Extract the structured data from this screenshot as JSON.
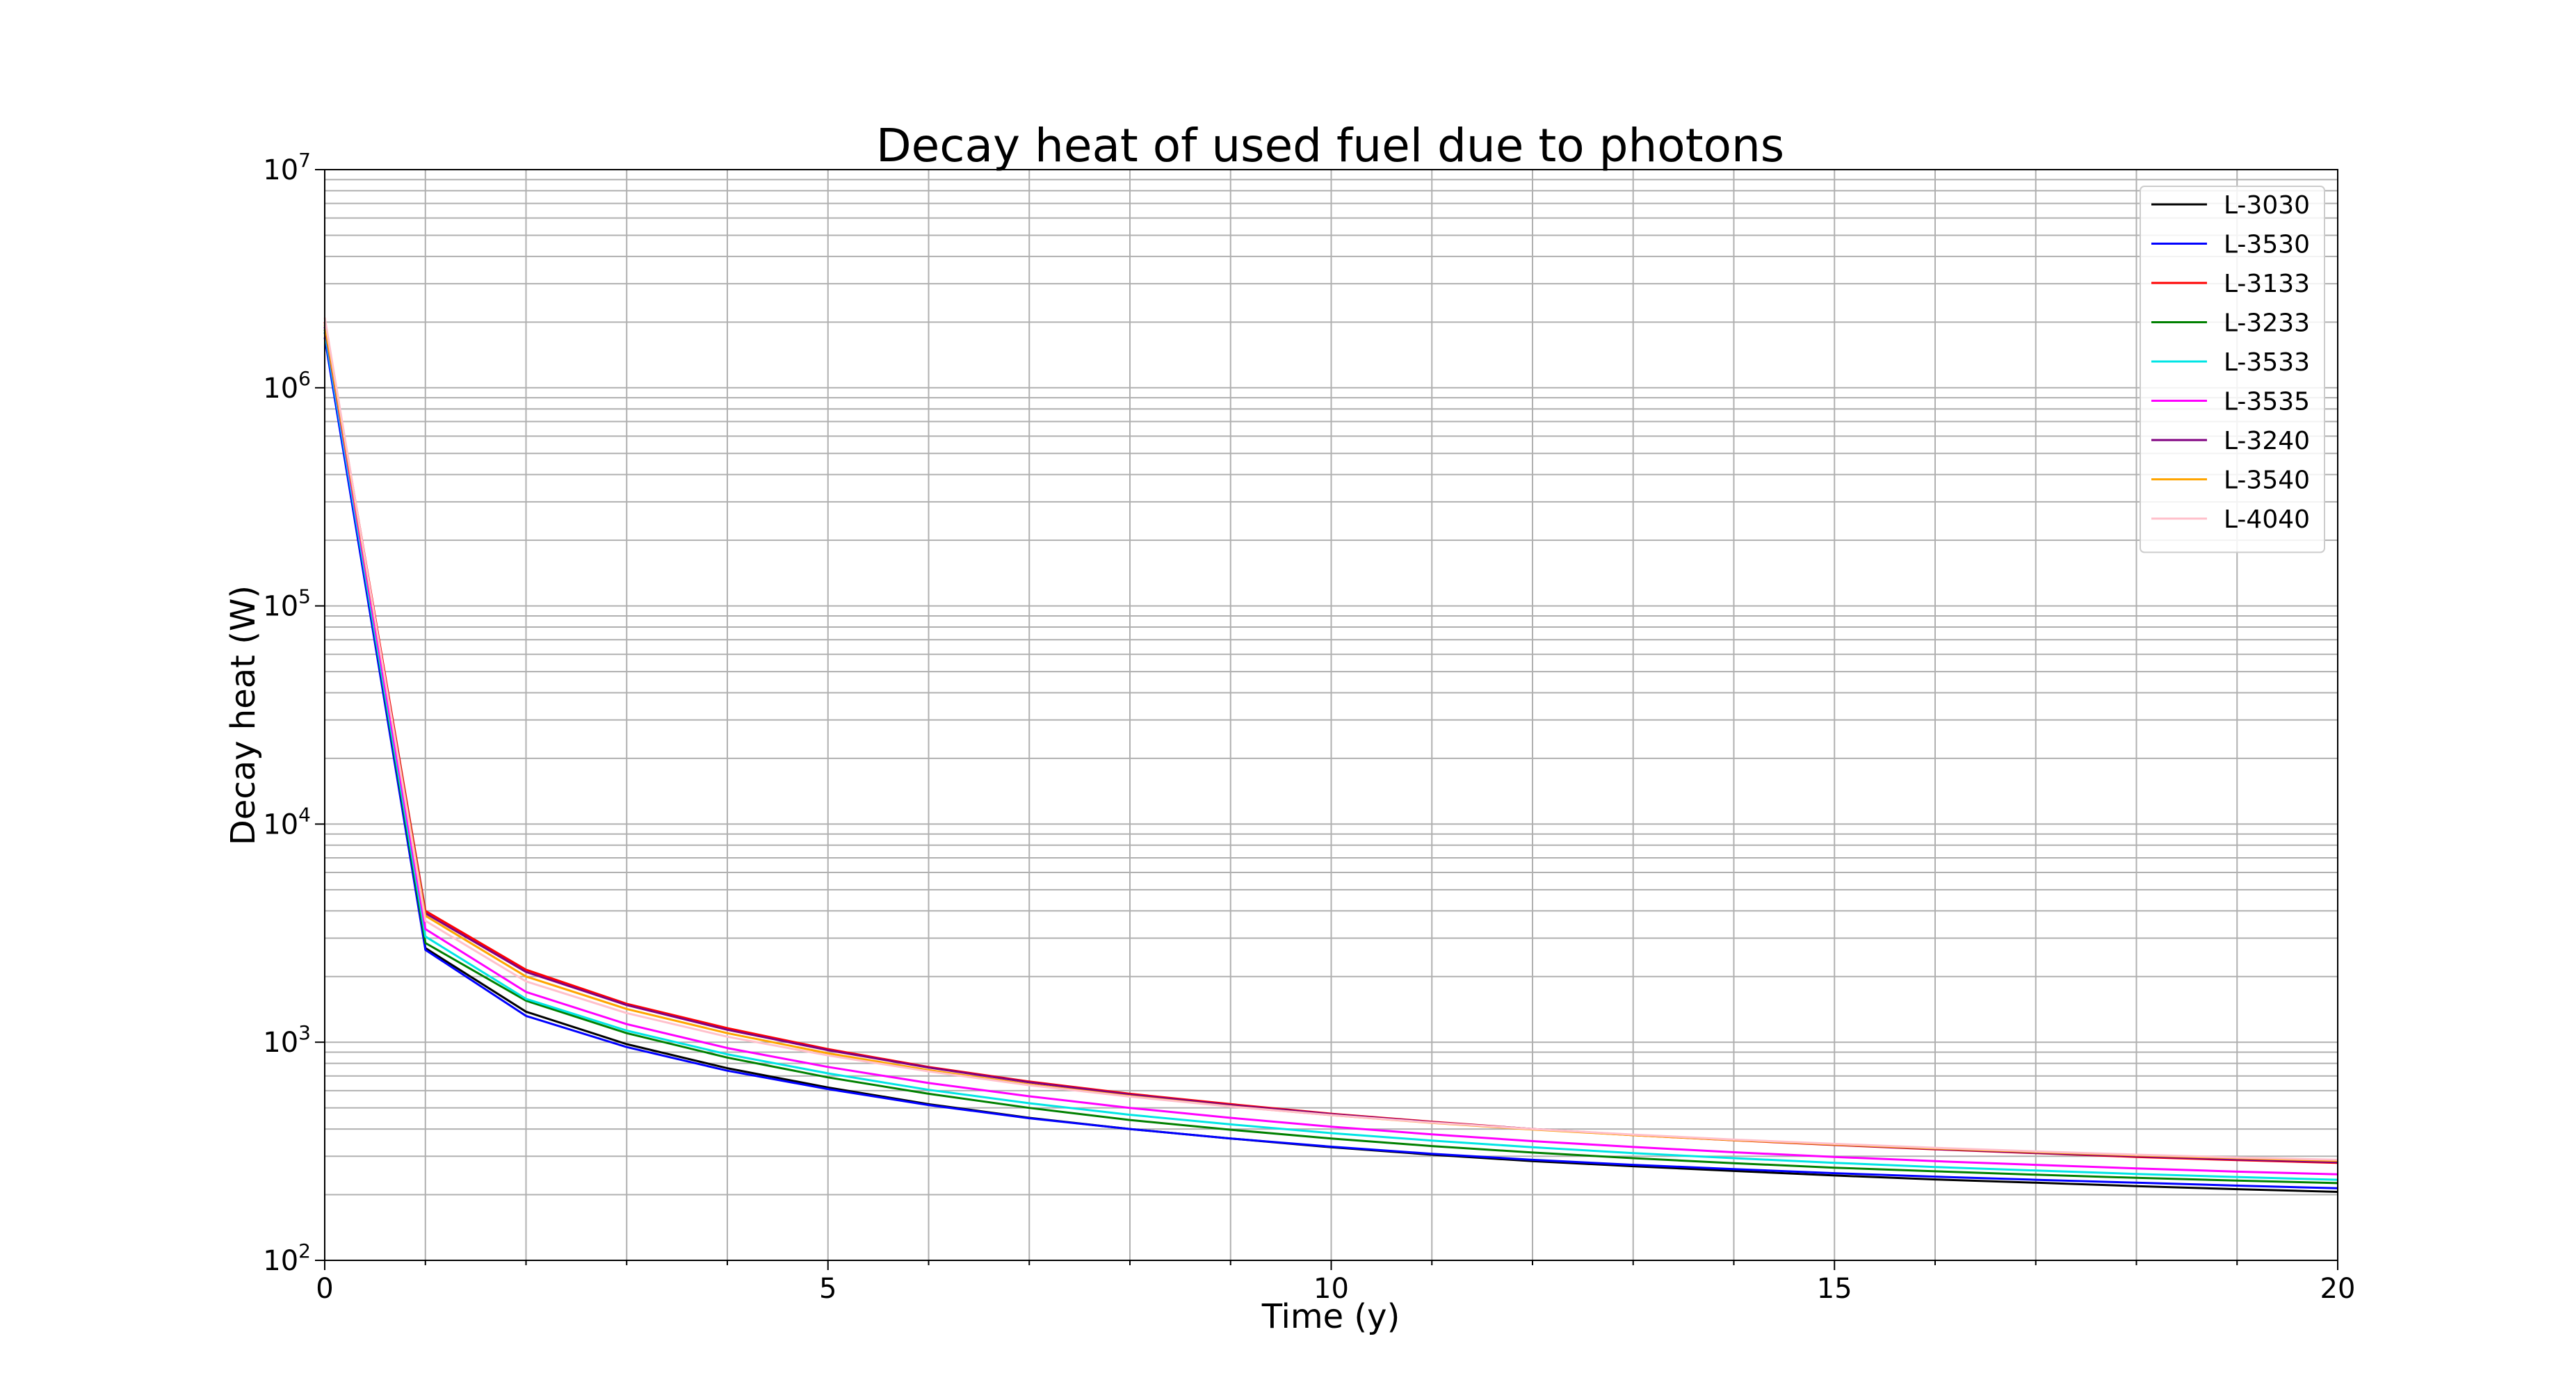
{
  "chart_data": {
    "type": "line",
    "title": "Decay heat of used fuel due to photons",
    "xlabel": "Time (y)",
    "ylabel": "Decay heat (W)",
    "xlim": [
      0,
      20
    ],
    "ylim": [
      100,
      10000000
    ],
    "yscale": "log",
    "grid": true,
    "minor_grid": true,
    "legend_position": "top-right",
    "x_ticks": [
      "0",
      "5",
      "10",
      "15",
      "20"
    ],
    "y_ticks": [
      {
        "base": "10",
        "exp": "2"
      },
      {
        "base": "10",
        "exp": "3"
      },
      {
        "base": "10",
        "exp": "4"
      },
      {
        "base": "10",
        "exp": "5"
      },
      {
        "base": "10",
        "exp": "6"
      },
      {
        "base": "10",
        "exp": "7"
      }
    ],
    "x": [
      0,
      1,
      2,
      3,
      4,
      5,
      6,
      7,
      8,
      9,
      10,
      11,
      12,
      13,
      14,
      15,
      16,
      17,
      18,
      19,
      20
    ],
    "series": [
      {
        "name": "L-3030",
        "color": "#000000",
        "values": [
          1800000,
          2700,
          1380,
          980,
          760,
          620,
          520,
          450,
          400,
          362,
          330,
          305,
          285,
          270,
          257,
          245,
          235,
          227,
          219,
          212,
          206
        ]
      },
      {
        "name": "L-3530",
        "color": "#0000ff",
        "values": [
          1700000,
          2650,
          1320,
          950,
          740,
          610,
          515,
          448,
          400,
          362,
          332,
          308,
          289,
          274,
          262,
          251,
          242,
          234,
          227,
          220,
          214
        ]
      },
      {
        "name": "L-3133",
        "color": "#ff0000",
        "values": [
          2000000,
          4000,
          2150,
          1500,
          1160,
          930,
          770,
          660,
          580,
          520,
          470,
          432,
          400,
          375,
          355,
          338,
          323,
          310,
          298,
          288,
          280
        ]
      },
      {
        "name": "L-3233",
        "color": "#008000",
        "values": [
          1850000,
          2850,
          1550,
          1100,
          850,
          690,
          580,
          500,
          440,
          397,
          362,
          334,
          312,
          294,
          279,
          266,
          256,
          247,
          239,
          232,
          226
        ]
      },
      {
        "name": "L-3533",
        "color": "#00e5e5",
        "values": [
          1800000,
          3050,
          1580,
          1130,
          880,
          720,
          605,
          525,
          465,
          420,
          383,
          354,
          330,
          310,
          294,
          280,
          268,
          258,
          249,
          241,
          234
        ]
      },
      {
        "name": "L-3535",
        "color": "#ff00ff",
        "values": [
          1900000,
          3300,
          1700,
          1210,
          940,
          770,
          650,
          565,
          500,
          450,
          410,
          378,
          352,
          331,
          313,
          298,
          285,
          274,
          264,
          255,
          248
        ]
      },
      {
        "name": "L-3240",
        "color": "#800080",
        "values": [
          1900000,
          3900,
          2100,
          1480,
          1140,
          920,
          765,
          655,
          575,
          515,
          468,
          430,
          400,
          376,
          356,
          339,
          324,
          311,
          300,
          290,
          282
        ]
      },
      {
        "name": "L-3540",
        "color": "#ffa500",
        "values": [
          1950000,
          3800,
          2000,
          1420,
          1100,
          890,
          745,
          640,
          566,
          508,
          463,
          427,
          398,
          375,
          356,
          340,
          326,
          314,
          303,
          294,
          286
        ]
      },
      {
        "name": "L-4040",
        "color": "#ffc0cb",
        "values": [
          2100000,
          3600,
          1900,
          1360,
          1060,
          870,
          735,
          635,
          563,
          507,
          463,
          428,
          400,
          377,
          358,
          342,
          328,
          316,
          305,
          296,
          289
        ]
      }
    ]
  }
}
